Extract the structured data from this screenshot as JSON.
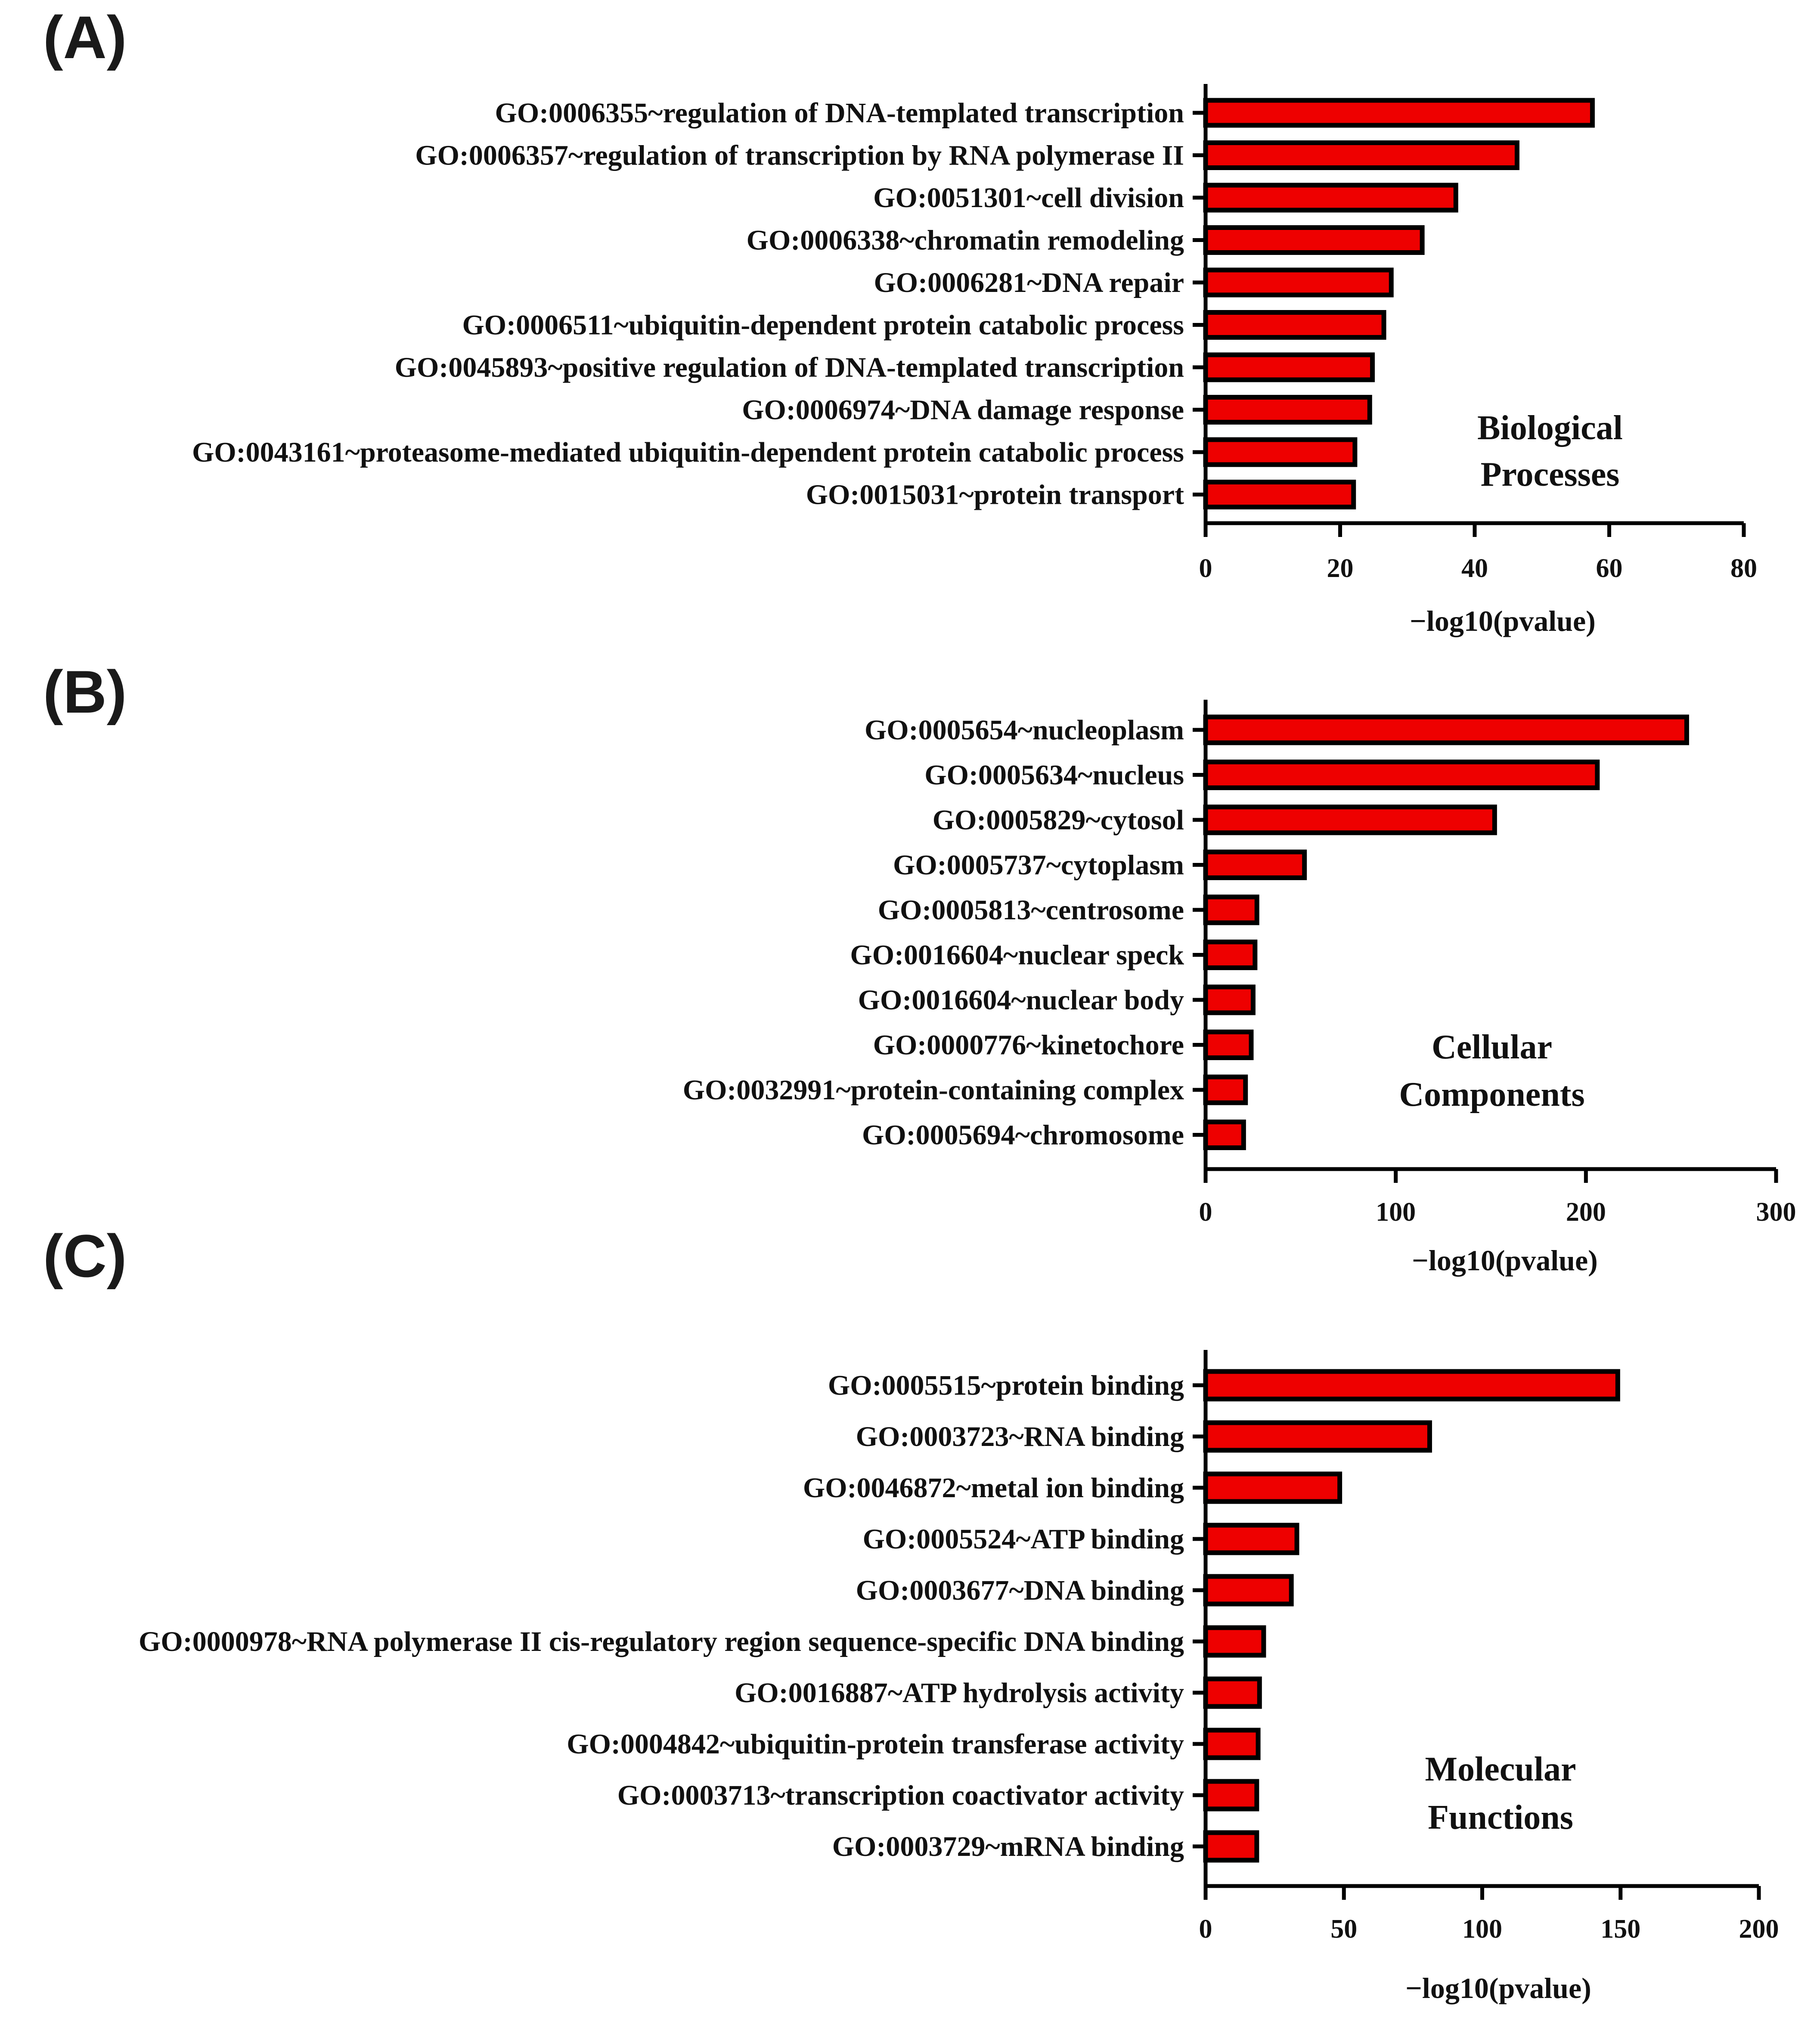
{
  "colors": {
    "bar_fill": "#ee0000",
    "bar_stroke": "#000000",
    "axis": "#000000",
    "text": "#111111"
  },
  "chart_data": [
    {
      "type": "bar",
      "orientation": "horizontal",
      "panel": "(A)",
      "annotation": [
        "Biological",
        "Processes"
      ],
      "xlabel": "−log10(pvalue)",
      "ylabel": "",
      "xlim": [
        0,
        80
      ],
      "ticks": [
        0,
        20,
        40,
        60,
        80
      ],
      "categories": [
        "GO:0006355~regulation of DNA-templated transcription",
        "GO:0006357~regulation of transcription by RNA polymerase II",
        "GO:0051301~cell division",
        "GO:0006338~chromatin remodeling",
        "GO:0006281~DNA repair",
        "GO:0006511~ubiquitin-dependent protein catabolic process",
        "GO:0045893~positive regulation of DNA-templated transcription",
        "GO:0006974~DNA damage response",
        "GO:0043161~proteasome-mediated ubiquitin-dependent protein catabolic process",
        "GO:0015031~protein transport"
      ],
      "values": [
        57.5,
        46.3,
        37.2,
        32.2,
        27.6,
        26.5,
        24.8,
        24.4,
        22.2,
        22.0
      ]
    },
    {
      "type": "bar",
      "orientation": "horizontal",
      "panel": "(B)",
      "annotation": [
        "Cellular",
        "Components"
      ],
      "xlabel": "−log10(pvalue)",
      "ylabel": "",
      "xlim": [
        0,
        300
      ],
      "ticks": [
        0,
        100,
        200,
        300
      ],
      "categories": [
        "GO:0005654~nucleoplasm",
        "GO:0005634~nucleus",
        "GO:0005829~cytosol",
        "GO:0005737~cytoplasm",
        "GO:0005813~centrosome",
        "GO:0016604~nuclear speck",
        "GO:0016604~nuclear body",
        "GO:0000776~kinetochore",
        "GO:0032991~protein-containing complex",
        "GO:0005694~chromosome"
      ],
      "values": [
        253,
        206,
        152,
        52,
        27,
        26,
        25,
        24,
        21,
        20
      ]
    },
    {
      "type": "bar",
      "orientation": "horizontal",
      "panel": "(C)",
      "annotation": [
        "Molecular",
        "Functions"
      ],
      "xlabel": "−log10(pvalue)",
      "ylabel": "",
      "xlim": [
        0,
        200
      ],
      "ticks": [
        0,
        50,
        100,
        150,
        200
      ],
      "categories": [
        "GO:0005515~protein binding",
        "GO:0003723~RNA binding",
        "GO:0046872~metal ion binding",
        "GO:0005524~ATP binding",
        "GO:0003677~DNA binding",
        "GO:0000978~RNA polymerase II cis-regulatory region sequence-specific DNA binding",
        "GO:0016887~ATP hydrolysis activity",
        "GO:0004842~ubiquitin-protein transferase activity",
        "GO:0003713~transcription coactivator activity",
        "GO:0003729~mRNA binding"
      ],
      "values": [
        149,
        81,
        48.5,
        33,
        31,
        21,
        19.5,
        19,
        18.5,
        18.5
      ]
    }
  ]
}
